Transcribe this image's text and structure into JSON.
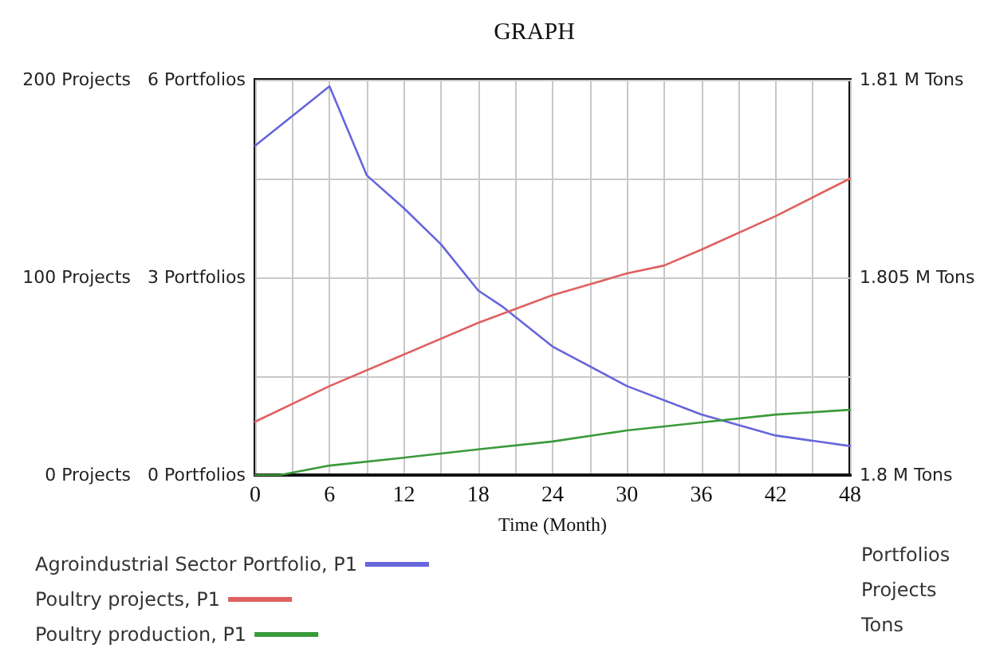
{
  "chart_data": {
    "type": "line",
    "title": "GRAPH",
    "xlabel": "Time (Month)",
    "annotations": [
      "Portfolios",
      "Projects",
      "Tons"
    ],
    "xlim": [
      0,
      48
    ],
    "xticks": [
      0,
      {
        "value": 3,
        "label": null
      },
      6,
      {
        "value": 9,
        "label": null
      },
      12,
      {
        "value": 15,
        "label": null
      },
      18,
      {
        "value": 21,
        "label": null
      },
      24,
      {
        "value": 27,
        "label": null
      },
      30,
      {
        "value": 33,
        "label": null
      },
      36,
      {
        "value": 39,
        "label": null
      },
      42,
      {
        "value": 45,
        "label": null
      },
      48
    ],
    "ylim": [
      0,
      6
    ],
    "yticks": [
      {
        "value": 0,
        "label": "0 Portfolios"
      },
      {
        "value": 1.5,
        "label": null
      },
      {
        "value": 3,
        "label": "3 Portfolios"
      },
      {
        "value": 4.5,
        "label": null
      },
      {
        "value": 6,
        "label": "6 Portfolios"
      }
    ],
    "y2lim": [
      0,
      200
    ],
    "y2ticks": [
      {
        "value": 0,
        "label": "0 Projects"
      },
      {
        "value": 50,
        "label": null
      },
      {
        "value": 100,
        "label": "100 Projects"
      },
      {
        "value": 150,
        "label": null
      },
      {
        "value": 200,
        "label": "200 Projects"
      }
    ],
    "y3lim": [
      1800000,
      1810000
    ],
    "y3ticks": [
      {
        "value": 1800000,
        "label": "1.8 M Tons"
      },
      {
        "value": 1802500,
        "label": null
      },
      {
        "value": 1805000,
        "label": "1.805 M Tons"
      },
      {
        "value": 1807500,
        "label": null
      },
      {
        "value": 1810000,
        "label": "1.81 M Tons"
      }
    ],
    "grid": true,
    "legend": "bottom",
    "marker": "none",
    "line_style": "solid",
    "series": [
      {
        "name": "Agroindustrial Sector Portfolio, P1",
        "color": "#6666dd",
        "axis": "y",
        "x": [
          0,
          6,
          9,
          12,
          15,
          18,
          20,
          24,
          30,
          36,
          42,
          48
        ],
        "values": [
          5.0,
          5.9,
          4.55,
          4.05,
          3.5,
          2.8,
          2.55,
          1.95,
          1.35,
          0.92,
          0.6,
          0.44
        ]
      },
      {
        "name": "Poultry projects, P1",
        "color": "#e06060",
        "axis": "y2",
        "x": [
          0,
          6,
          12,
          18,
          24,
          30,
          33,
          36,
          42,
          48
        ],
        "values": [
          27,
          45,
          61,
          77,
          91,
          102,
          106,
          114,
          131,
          150
        ]
      },
      {
        "name": "Poultry production, P1",
        "color": "#3a9a3a",
        "axis": "y3",
        "x": [
          0,
          2,
          6,
          12,
          18,
          24,
          30,
          36,
          42,
          48
        ],
        "values": [
          1800000,
          1800000,
          1800240,
          1800440,
          1800650,
          1800850,
          1801130,
          1801330,
          1801530,
          1801650
        ]
      }
    ]
  }
}
